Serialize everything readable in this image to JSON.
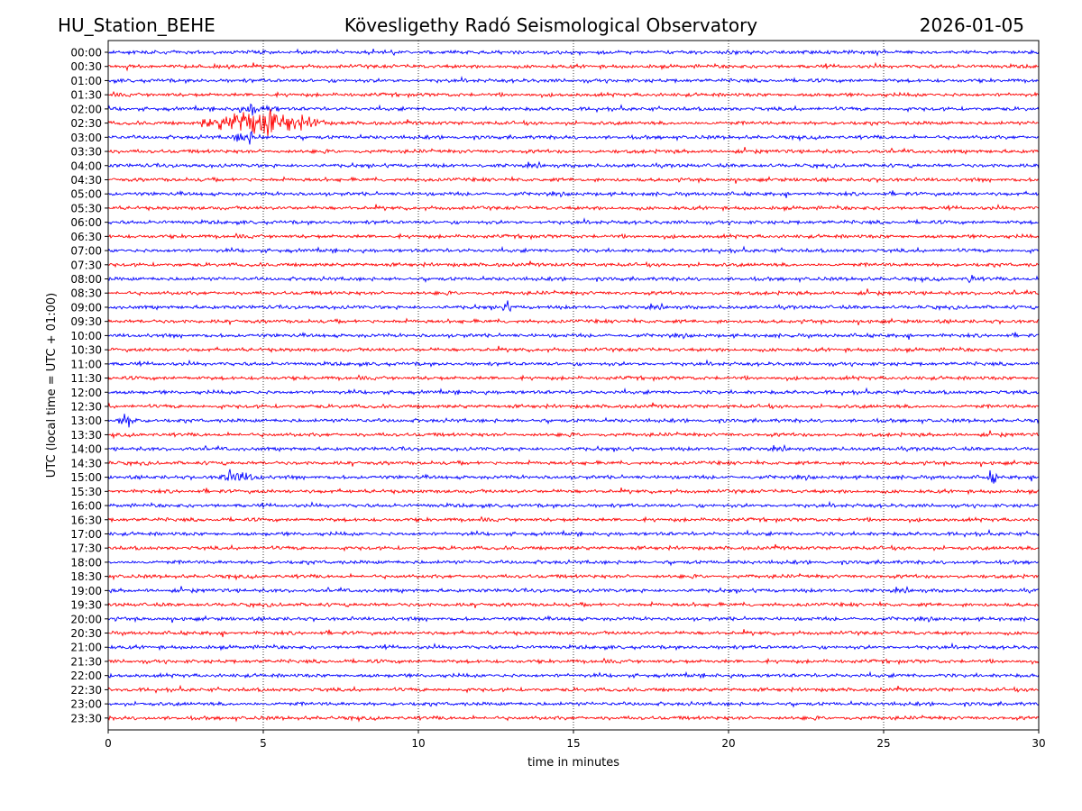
{
  "header": {
    "station": "HU_Station_BEHE",
    "observatory": "Kövesligethy Radó Seismological Observatory",
    "date": "2026-01-05"
  },
  "chart_data": {
    "type": "line",
    "xlabel": "time in minutes",
    "ylabel": "UTC (local time = UTC + 01:00)",
    "xlim": [
      0,
      30
    ],
    "x_ticks": [
      0,
      5,
      10,
      15,
      20,
      25,
      30
    ],
    "grid": "vertical dotted at x ticks",
    "colors": {
      "even_rows": "#0000ff",
      "odd_rows": "#ff0000"
    },
    "rows": [
      "00:00",
      "00:30",
      "01:00",
      "01:30",
      "02:00",
      "02:30",
      "03:00",
      "03:30",
      "04:00",
      "04:30",
      "05:00",
      "05:30",
      "06:00",
      "06:30",
      "07:00",
      "07:30",
      "08:00",
      "08:30",
      "09:00",
      "09:30",
      "10:00",
      "10:30",
      "11:00",
      "11:30",
      "12:00",
      "12:30",
      "13:00",
      "13:30",
      "14:00",
      "14:30",
      "15:00",
      "15:30",
      "16:00",
      "16:30",
      "17:00",
      "17:30",
      "18:00",
      "18:30",
      "19:00",
      "19:30",
      "20:00",
      "20:30",
      "21:00",
      "21:30",
      "22:00",
      "22:30",
      "23:00",
      "23:30"
    ],
    "events": [
      {
        "row": "02:30",
        "start_min": 3.0,
        "end_min": 7.0,
        "peak_min": 4.7
      },
      {
        "row": "02:00",
        "start_min": 4.0,
        "end_min": 5.5,
        "peak_min": 4.6
      },
      {
        "row": "03:00",
        "start_min": 4.0,
        "end_min": 5.0,
        "peak_min": 4.4
      },
      {
        "row": "08:00",
        "start_min": 27.7,
        "end_min": 28.0,
        "peak_min": 27.8
      },
      {
        "row": "09:00",
        "start_min": 12.6,
        "end_min": 13.0,
        "peak_min": 12.8
      },
      {
        "row": "15:00",
        "start_min": 28.3,
        "end_min": 28.7,
        "peak_min": 28.5
      },
      {
        "row": "15:00",
        "start_min": 3.5,
        "end_min": 5.0,
        "peak_min": 4.0
      },
      {
        "row": "13:00",
        "start_min": 0.2,
        "end_min": 1.0,
        "peak_min": 0.6
      }
    ]
  }
}
